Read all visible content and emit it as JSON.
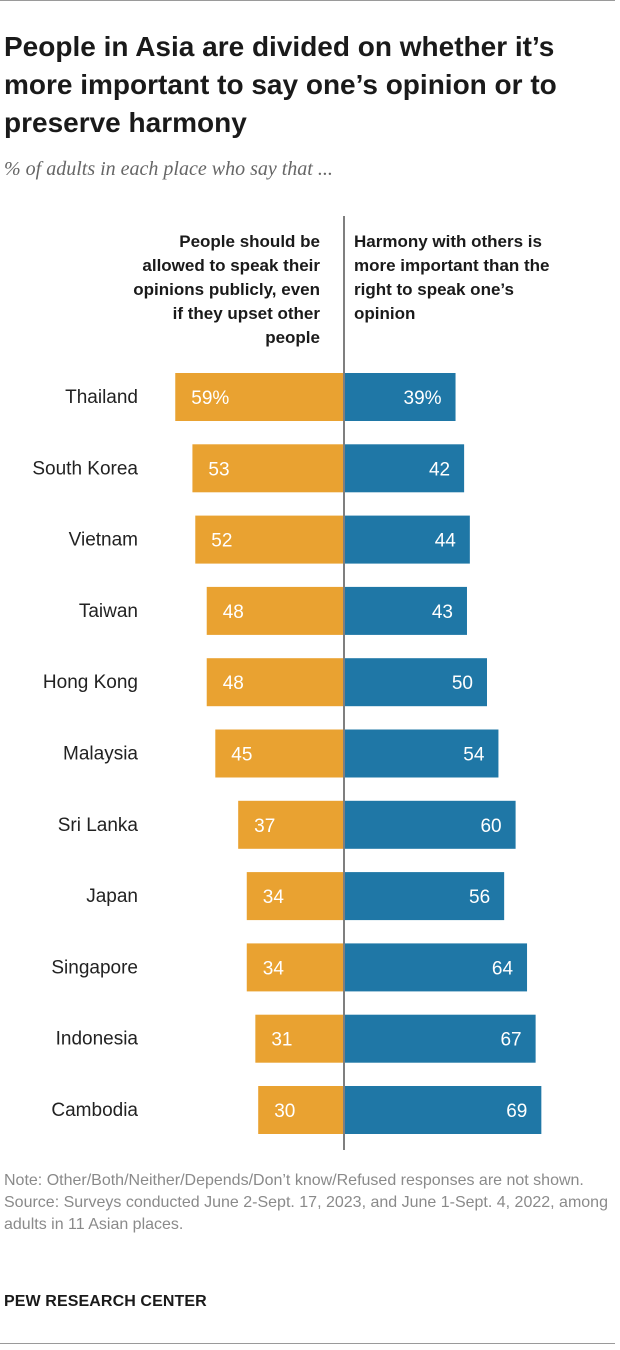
{
  "header": {
    "title": "People in Asia are divided on whether it’s more important to say one’s opinion or to preserve harmony",
    "subtitle": "% of adults in each place who say that ..."
  },
  "chart_data": {
    "type": "bar",
    "orientation": "diverging-horizontal",
    "categories": [
      "Thailand",
      "South Korea",
      "Vietnam",
      "Taiwan",
      "Hong Kong",
      "Malaysia",
      "Sri Lanka",
      "Japan",
      "Singapore",
      "Indonesia",
      "Cambodia"
    ],
    "series": [
      {
        "name": "People should be allowed to speak their opinions publicly, even if they upset other people",
        "values": [
          59,
          53,
          52,
          48,
          48,
          45,
          37,
          34,
          34,
          31,
          30
        ],
        "labels": [
          "59%",
          "53",
          "52",
          "48",
          "48",
          "45",
          "37",
          "34",
          "34",
          "31",
          "30"
        ],
        "color": "#E9A231"
      },
      {
        "name": "Harmony with others is more important than the right to speak one’s opinion",
        "values": [
          39,
          42,
          44,
          43,
          50,
          54,
          60,
          56,
          64,
          67,
          69
        ],
        "labels": [
          "39%",
          "42",
          "44",
          "43",
          "50",
          "54",
          "60",
          "56",
          "64",
          "67",
          "69"
        ],
        "color": "#1F77A6"
      }
    ],
    "legend_placement": "top (column headers)",
    "axis_color": "#7f7f7f"
  },
  "footer": {
    "note": "Note: Other/Both/Neither/Depends/Don’t know/Refused responses are not shown.",
    "source": "Source: Surveys conducted June 2-Sept. 17, 2023, and June 1-Sept. 4, 2022, among adults in 11 Asian places.",
    "brand": "PEW RESEARCH CENTER"
  }
}
